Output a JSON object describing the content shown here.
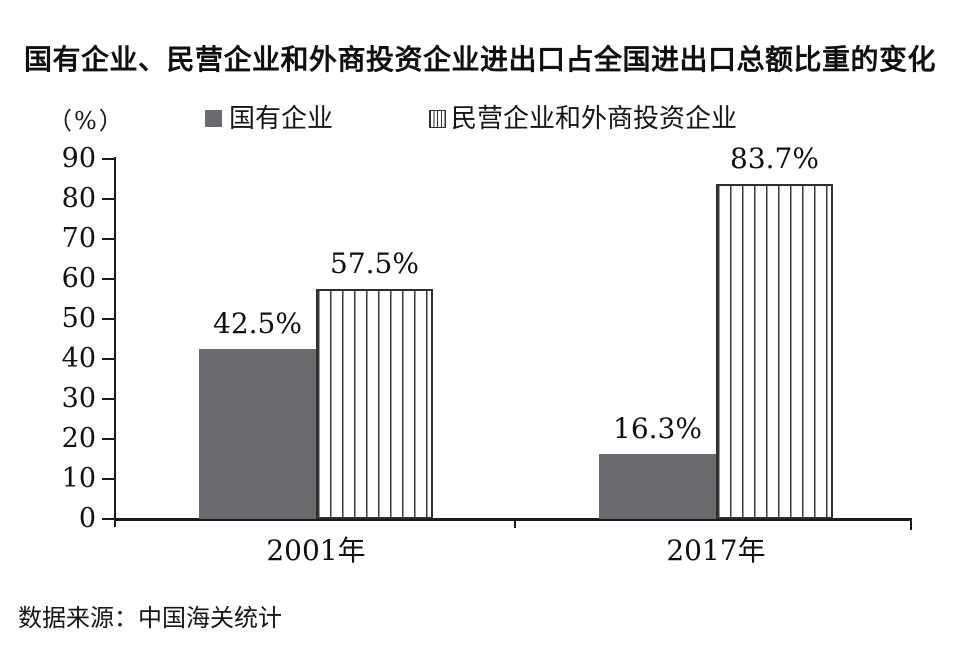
{
  "title": "国有企业、民营企业和外商投资企业进出口占全国进出口总额比重的变化",
  "unit_label": "（%）",
  "legend": [
    {
      "label": "国有企业",
      "swatch": "solid-gray-square"
    },
    {
      "label": "民营企业和外商投资企业",
      "swatch": "vertical-striped-square"
    }
  ],
  "source": "数据来源：中国海关统计",
  "colors": {
    "solid_bar": "#6a6b6f",
    "stripe_line": "#3a3a3a",
    "axis": "#1a1a1a",
    "text": "#111111"
  },
  "chart_data": {
    "type": "bar",
    "categories": [
      "2001年",
      "2017年"
    ],
    "series": [
      {
        "name": "国有企业",
        "style": "solid",
        "values": [
          42.5,
          16.3
        ]
      },
      {
        "name": "民营企业和外商投资企业",
        "style": "striped",
        "values": [
          57.5,
          83.7
        ]
      }
    ],
    "value_labels": {
      "solid": [
        "42.5%",
        "16.3%"
      ],
      "striped": [
        "57.5%",
        "83.7%"
      ]
    },
    "ylabel": "（%）",
    "ylim": [
      0,
      90
    ],
    "yticks": [
      0,
      10,
      20,
      30,
      40,
      50,
      60,
      70,
      80,
      90
    ],
    "grid": false,
    "legend_position": "top"
  }
}
